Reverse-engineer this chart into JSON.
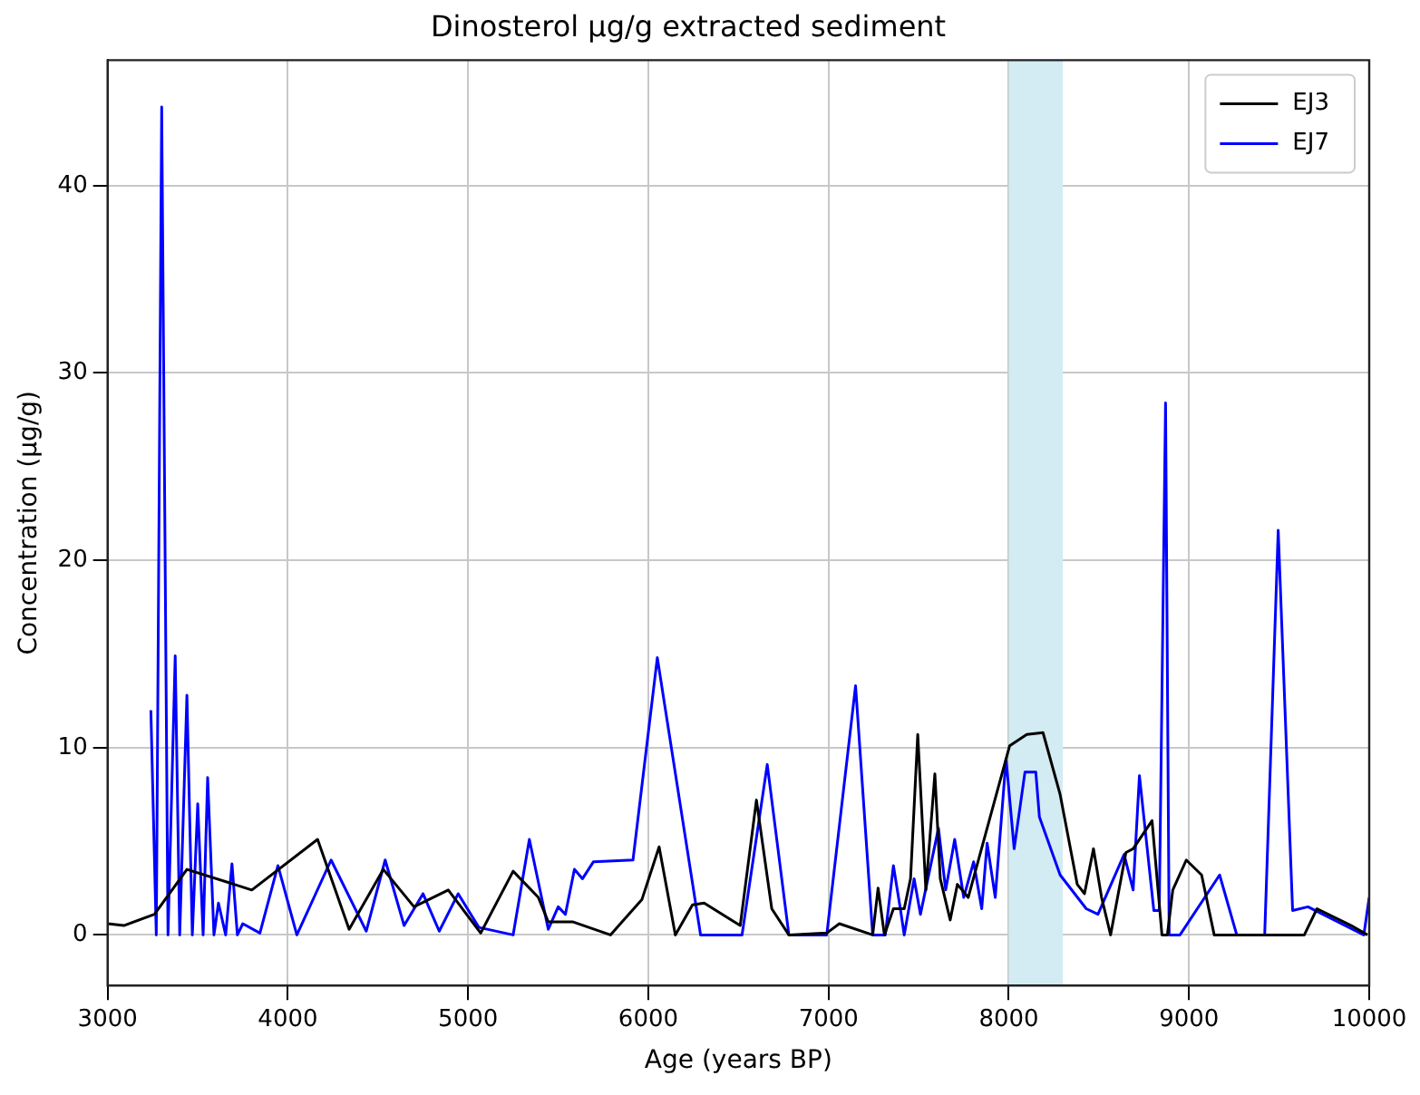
{
  "chart_data": {
    "type": "line",
    "title": "Dinosterol µg/g extracted sediment",
    "xlabel": "Age (years BP)",
    "ylabel": "Concentration (µg/g)",
    "xlim": [
      3000,
      10000
    ],
    "xticks": [
      3000,
      4000,
      5000,
      6000,
      7000,
      8000,
      9000,
      10000
    ],
    "ylim": [
      -2.7,
      46.7
    ],
    "yticks": [
      0,
      10,
      20,
      30,
      40
    ],
    "grid": true,
    "legend": "top right",
    "marker": "none",
    "line_style": "solid",
    "bands": [
      {
        "axis": "x",
        "from": 8000,
        "to": 8300,
        "color": "#d3ebf2"
      }
    ],
    "series": [
      {
        "name": "EJ3",
        "color": "#000000",
        "x": [
          3000,
          3090,
          3260,
          3440,
          3800,
          4165,
          4340,
          4530,
          4700,
          4890,
          5070,
          5250,
          5390,
          5445,
          5580,
          5790,
          5965,
          6060,
          6150,
          6245,
          6310,
          6510,
          6600,
          6685,
          6780,
          6990,
          7060,
          7245,
          7275,
          7310,
          7360,
          7420,
          7455,
          7495,
          7540,
          7590,
          7620,
          7675,
          7715,
          7775,
          8005,
          8100,
          8190,
          8285,
          8380,
          8420,
          8470,
          8515,
          8565,
          8650,
          8690,
          8795,
          8850,
          8880,
          8910,
          8985,
          9070,
          9140,
          9640,
          9710,
          9900,
          9990
        ],
        "values": [
          0.6,
          0.5,
          1.1,
          3.5,
          2.4,
          5.1,
          0.3,
          3.5,
          1.5,
          2.4,
          0.1,
          3.4,
          2.0,
          0.7,
          0.7,
          0,
          1.9,
          4.7,
          0,
          1.6,
          1.7,
          0.5,
          7.2,
          1.4,
          0,
          0.1,
          0.6,
          0,
          2.5,
          0,
          1.4,
          1.4,
          3.0,
          10.7,
          2.4,
          8.6,
          3.0,
          0.8,
          2.7,
          2.0,
          10.1,
          10.7,
          10.8,
          7.5,
          2.7,
          2.2,
          4.6,
          2.0,
          0,
          4.4,
          4.6,
          6.1,
          0,
          0,
          2.4,
          4.0,
          3.2,
          0,
          0,
          1.4,
          0.5,
          0
        ]
      },
      {
        "name": "EJ7",
        "color": "#0000ff",
        "x": [
          3240,
          3270,
          3300,
          3335,
          3375,
          3400,
          3440,
          3470,
          3500,
          3530,
          3555,
          3590,
          3615,
          3655,
          3690,
          3720,
          3750,
          3845,
          3945,
          4050,
          4240,
          4435,
          4540,
          4645,
          4750,
          4840,
          4945,
          5060,
          5250,
          5340,
          5445,
          5500,
          5540,
          5590,
          5635,
          5695,
          5915,
          6050,
          6290,
          6520,
          6660,
          6780,
          6990,
          7150,
          7245,
          7315,
          7360,
          7400,
          7420,
          7475,
          7510,
          7610,
          7650,
          7700,
          7750,
          7805,
          7850,
          7880,
          7925,
          7985,
          8030,
          8090,
          8150,
          8170,
          8285,
          8430,
          8495,
          8640,
          8690,
          8725,
          8805,
          8835,
          8870,
          8890,
          8950,
          9170,
          9265,
          9420,
          9495,
          9575,
          9660,
          9970,
          10000
        ],
        "values": [
          12.0,
          0,
          44.2,
          0,
          14.9,
          0,
          12.8,
          0,
          7.0,
          0,
          8.4,
          0,
          1.7,
          0,
          3.8,
          0,
          0.6,
          0.1,
          3.7,
          0,
          4.0,
          0.2,
          4.0,
          0.5,
          2.2,
          0.2,
          2.2,
          0.4,
          0,
          5.1,
          0.3,
          1.5,
          1.1,
          3.5,
          3.0,
          3.9,
          4.0,
          14.8,
          0,
          0,
          9.1,
          0,
          0,
          13.3,
          0,
          0,
          3.7,
          1.3,
          0,
          3.0,
          1.1,
          5.7,
          2.4,
          5.1,
          2.0,
          3.9,
          1.4,
          4.9,
          2.0,
          9.4,
          4.6,
          8.7,
          8.7,
          6.3,
          3.2,
          1.4,
          1.1,
          4.3,
          2.4,
          8.5,
          1.3,
          1.3,
          28.4,
          0,
          0,
          3.2,
          0,
          0,
          21.6,
          1.3,
          1.5,
          0,
          2.0
        ]
      }
    ]
  }
}
